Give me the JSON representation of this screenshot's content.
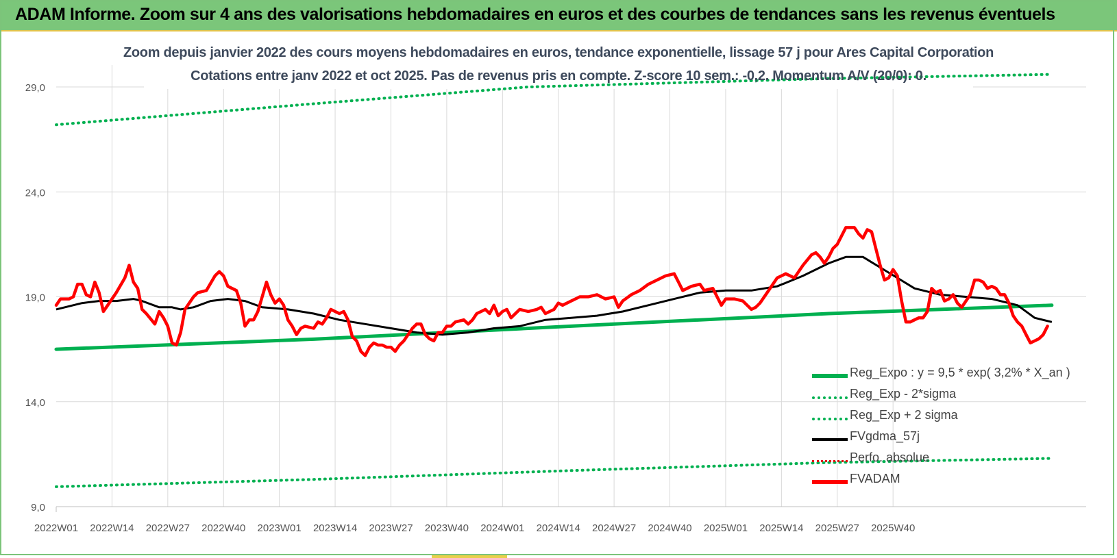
{
  "header": {
    "title": "ADAM Informe. Zoom sur 4 ans des valorisations hebdomadaires en euros et des courbes de tendances sans les revenus éventuels"
  },
  "chart_data": {
    "type": "line",
    "title_line1": "Zoom depuis janvier 2022 des cours moyens hebdomadaires en euros, tendance exponentielle, lissage 57 j pour Ares Capital Corporation",
    "title_line2": "Cotations entre janv 2022 et oct 2025. Pas de revenus pris en compte. Z-score 10 sem.: -0,2.  Momentum A/V (20/0): 0.",
    "ylim": [
      9,
      29.6
    ],
    "yticks": [
      9,
      14,
      19,
      24,
      29
    ],
    "ytick_labels": [
      "9,0",
      "14,0",
      "19,0",
      "24,0",
      "29,0"
    ],
    "xtick_labels": [
      "2022W01",
      "2022W14",
      "2022W27",
      "2022W40",
      "2023W01",
      "2023W14",
      "2023W27",
      "2023W40",
      "2024W01",
      "2024W14",
      "2024W27",
      "2024W40",
      "2025W01",
      "2025W14",
      "2025W27",
      "2025W40"
    ],
    "grid": true,
    "legend_position": "bottom-right",
    "x_label": "",
    "y_label": "",
    "series": [
      {
        "name": "Reg_Expo : y = 9,5 * exp( 3,2% *  X_an )",
        "style": "thick-solid",
        "color": "#00b050",
        "points": [
          [
            0,
            16.5
          ],
          [
            60,
            16.98
          ],
          [
            120,
            17.6
          ],
          [
            180,
            18.2
          ],
          [
            232,
            18.6
          ]
        ]
      },
      {
        "name": "Reg_Exp - 2*sigma",
        "style": "dotted",
        "color": "#00b050",
        "points": [
          [
            0,
            9.95
          ],
          [
            60,
            10.3
          ],
          [
            120,
            10.72
          ],
          [
            180,
            11.1
          ],
          [
            232,
            11.3
          ]
        ]
      },
      {
        "name": "Reg_Exp + 2 sigma",
        "style": "dotted",
        "color": "#00b050",
        "points": [
          [
            0,
            27.2
          ],
          [
            60,
            28.2
          ],
          [
            110,
            29.0
          ],
          [
            180,
            29.4
          ],
          [
            232,
            29.6
          ]
        ]
      },
      {
        "name": "FVgdma_57j",
        "style": "solid",
        "color": "#000000",
        "points": [
          [
            0,
            18.4
          ],
          [
            6,
            18.7
          ],
          [
            10,
            18.8
          ],
          [
            14,
            18.8
          ],
          [
            18,
            18.9
          ],
          [
            20,
            18.8
          ],
          [
            24,
            18.5
          ],
          [
            27,
            18.5
          ],
          [
            29,
            18.4
          ],
          [
            32,
            18.5
          ],
          [
            36,
            18.8
          ],
          [
            40,
            18.9
          ],
          [
            44,
            18.8
          ],
          [
            48,
            18.5
          ],
          [
            54,
            18.4
          ],
          [
            60,
            18.2
          ],
          [
            66,
            17.9
          ],
          [
            72,
            17.7
          ],
          [
            78,
            17.5
          ],
          [
            84,
            17.3
          ],
          [
            90,
            17.2
          ],
          [
            96,
            17.3
          ],
          [
            102,
            17.5
          ],
          [
            108,
            17.6
          ],
          [
            114,
            17.9
          ],
          [
            120,
            18.0
          ],
          [
            126,
            18.1
          ],
          [
            132,
            18.3
          ],
          [
            138,
            18.6
          ],
          [
            144,
            18.9
          ],
          [
            150,
            19.2
          ],
          [
            156,
            19.3
          ],
          [
            162,
            19.3
          ],
          [
            168,
            19.5
          ],
          [
            174,
            20.0
          ],
          [
            180,
            20.6
          ],
          [
            184,
            20.9
          ],
          [
            188,
            20.9
          ],
          [
            192,
            20.4
          ],
          [
            196,
            19.9
          ],
          [
            200,
            19.4
          ],
          [
            206,
            19.1
          ],
          [
            212,
            19.0
          ],
          [
            218,
            18.9
          ],
          [
            224,
            18.6
          ],
          [
            228,
            18.0
          ],
          [
            232,
            17.8
          ]
        ]
      },
      {
        "name": "Perfo. absolue",
        "style": "dotted",
        "color": "#e00000",
        "points": []
      },
      {
        "name": "FVADAM",
        "style": "thick-solid",
        "color": "#ff0000",
        "points": [
          [
            0,
            18.6
          ],
          [
            1,
            18.9
          ],
          [
            3,
            18.9
          ],
          [
            4,
            19.0
          ],
          [
            5,
            19.6
          ],
          [
            6,
            19.6
          ],
          [
            7,
            19.1
          ],
          [
            8,
            19.0
          ],
          [
            9,
            19.7
          ],
          [
            10,
            19.2
          ],
          [
            11,
            18.3
          ],
          [
            12,
            18.6
          ],
          [
            14,
            19.2
          ],
          [
            16,
            19.9
          ],
          [
            17,
            20.5
          ],
          [
            18,
            19.7
          ],
          [
            19,
            19.4
          ],
          [
            20,
            18.4
          ],
          [
            21,
            18.2
          ],
          [
            23,
            17.7
          ],
          [
            24,
            18.3
          ],
          [
            25,
            18.0
          ],
          [
            26,
            17.6
          ],
          [
            27,
            16.8
          ],
          [
            28,
            16.7
          ],
          [
            29,
            17.3
          ],
          [
            30,
            18.4
          ],
          [
            32,
            19.0
          ],
          [
            33,
            19.2
          ],
          [
            35,
            19.3
          ],
          [
            37,
            20.0
          ],
          [
            38,
            20.2
          ],
          [
            39,
            20.0
          ],
          [
            40,
            19.5
          ],
          [
            42,
            19.3
          ],
          [
            43,
            18.7
          ],
          [
            44,
            17.6
          ],
          [
            45,
            17.9
          ],
          [
            46,
            17.9
          ],
          [
            47,
            18.3
          ],
          [
            48,
            19.0
          ],
          [
            49,
            19.7
          ],
          [
            50,
            19.1
          ],
          [
            51,
            18.7
          ],
          [
            52,
            18.9
          ],
          [
            53,
            18.6
          ],
          [
            54,
            17.9
          ],
          [
            55,
            17.6
          ],
          [
            56,
            17.2
          ],
          [
            57,
            17.5
          ],
          [
            58,
            17.6
          ],
          [
            60,
            17.5
          ],
          [
            61,
            17.8
          ],
          [
            62,
            17.7
          ],
          [
            63,
            18.0
          ],
          [
            64,
            18.4
          ],
          [
            65,
            18.3
          ],
          [
            66,
            18.2
          ],
          [
            67,
            18.3
          ],
          [
            68,
            17.9
          ],
          [
            69,
            17.1
          ],
          [
            70,
            16.9
          ],
          [
            71,
            16.4
          ],
          [
            72,
            16.2
          ],
          [
            73,
            16.6
          ],
          [
            74,
            16.8
          ],
          [
            75,
            16.7
          ],
          [
            76,
            16.7
          ],
          [
            77,
            16.6
          ],
          [
            78,
            16.6
          ],
          [
            79,
            16.4
          ],
          [
            80,
            16.7
          ],
          [
            81,
            16.9
          ],
          [
            82,
            17.2
          ],
          [
            83,
            17.5
          ],
          [
            84,
            17.7
          ],
          [
            85,
            17.7
          ],
          [
            86,
            17.2
          ],
          [
            87,
            17.0
          ],
          [
            88,
            16.9
          ],
          [
            89,
            17.3
          ],
          [
            90,
            17.3
          ],
          [
            91,
            17.6
          ],
          [
            92,
            17.6
          ],
          [
            93,
            17.8
          ],
          [
            95,
            17.9
          ],
          [
            96,
            17.7
          ],
          [
            97,
            17.9
          ],
          [
            98,
            18.2
          ],
          [
            99,
            18.3
          ],
          [
            100,
            18.4
          ],
          [
            101,
            18.2
          ],
          [
            102,
            18.6
          ],
          [
            103,
            18.1
          ],
          [
            104,
            18.3
          ],
          [
            105,
            18.4
          ],
          [
            106,
            18.0
          ],
          [
            107,
            18.2
          ],
          [
            108,
            18.4
          ],
          [
            110,
            18.3
          ],
          [
            112,
            18.4
          ],
          [
            113,
            18.5
          ],
          [
            114,
            18.2
          ],
          [
            116,
            18.4
          ],
          [
            117,
            18.7
          ],
          [
            118,
            18.6
          ],
          [
            120,
            18.8
          ],
          [
            122,
            19.0
          ],
          [
            124,
            19.0
          ],
          [
            126,
            19.1
          ],
          [
            128,
            18.9
          ],
          [
            130,
            19.0
          ],
          [
            131,
            18.5
          ],
          [
            132,
            18.8
          ],
          [
            134,
            19.1
          ],
          [
            136,
            19.3
          ],
          [
            138,
            19.6
          ],
          [
            140,
            19.8
          ],
          [
            142,
            20.0
          ],
          [
            144,
            20.1
          ],
          [
            145,
            19.7
          ],
          [
            146,
            19.3
          ],
          [
            148,
            19.5
          ],
          [
            150,
            19.6
          ],
          [
            151,
            19.3
          ],
          [
            153,
            19.4
          ],
          [
            155,
            18.6
          ],
          [
            156,
            18.9
          ],
          [
            158,
            18.9
          ],
          [
            160,
            18.8
          ],
          [
            161,
            18.6
          ],
          [
            162,
            18.4
          ],
          [
            163,
            18.5
          ],
          [
            164,
            18.7
          ],
          [
            166,
            19.3
          ],
          [
            168,
            19.9
          ],
          [
            170,
            20.1
          ],
          [
            172,
            19.9
          ],
          [
            174,
            20.5
          ],
          [
            176,
            21.0
          ],
          [
            177,
            21.1
          ],
          [
            178,
            20.9
          ],
          [
            179,
            20.6
          ],
          [
            180,
            20.9
          ],
          [
            181,
            21.3
          ],
          [
            182,
            21.5
          ],
          [
            184,
            22.3
          ],
          [
            186,
            22.3
          ],
          [
            187,
            22.0
          ],
          [
            188,
            21.8
          ],
          [
            189,
            22.2
          ],
          [
            190,
            22.1
          ],
          [
            191,
            21.3
          ],
          [
            192,
            20.5
          ],
          [
            193,
            19.8
          ],
          [
            194,
            19.9
          ],
          [
            195,
            20.3
          ],
          [
            196,
            20.0
          ],
          [
            197,
            18.8
          ],
          [
            198,
            17.8
          ],
          [
            199,
            17.8
          ],
          [
            200,
            17.9
          ],
          [
            201,
            18.0
          ],
          [
            202,
            18.0
          ],
          [
            203,
            18.3
          ],
          [
            204,
            19.4
          ],
          [
            205,
            19.2
          ],
          [
            206,
            19.3
          ],
          [
            207,
            18.8
          ],
          [
            208,
            18.9
          ],
          [
            209,
            19.1
          ],
          [
            210,
            18.7
          ],
          [
            211,
            18.5
          ],
          [
            212,
            18.8
          ],
          [
            213,
            19.1
          ],
          [
            214,
            19.8
          ],
          [
            215,
            19.8
          ],
          [
            216,
            19.7
          ],
          [
            217,
            19.4
          ],
          [
            218,
            19.5
          ],
          [
            219,
            19.4
          ],
          [
            220,
            19.1
          ],
          [
            221,
            19.1
          ],
          [
            222,
            18.7
          ],
          [
            223,
            18.1
          ],
          [
            224,
            17.8
          ],
          [
            225,
            17.6
          ],
          [
            226,
            17.2
          ],
          [
            227,
            16.8
          ],
          [
            228,
            16.9
          ],
          [
            229,
            17.0
          ],
          [
            230,
            17.2
          ],
          [
            231,
            17.6
          ]
        ]
      }
    ]
  }
}
